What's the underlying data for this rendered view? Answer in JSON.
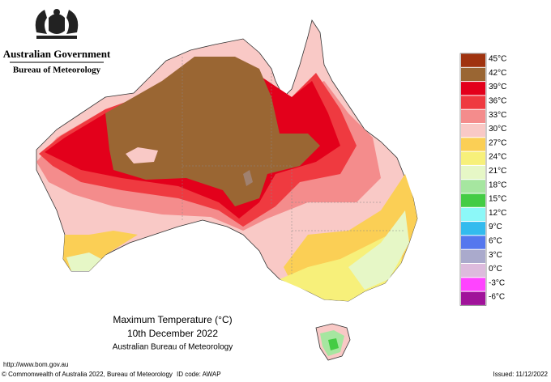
{
  "header": {
    "government": "Australian Government",
    "agency": "Bureau of Meteorology"
  },
  "legend": [
    {
      "label": "45°C",
      "color": "#a0330f"
    },
    {
      "label": "42°C",
      "color": "#9a6633"
    },
    {
      "label": "39°C",
      "color": "#e3001b"
    },
    {
      "label": "36°C",
      "color": "#ef3a40"
    },
    {
      "label": "33°C",
      "color": "#f48c8c"
    },
    {
      "label": "30°C",
      "color": "#f9c9c6"
    },
    {
      "label": "27°C",
      "color": "#fbcf55"
    },
    {
      "label": "24°C",
      "color": "#f7f07a"
    },
    {
      "label": "21°C",
      "color": "#e6f7c6"
    },
    {
      "label": "18°C",
      "color": "#a6e6a0"
    },
    {
      "label": "15°C",
      "color": "#44cc44"
    },
    {
      "label": "12°C",
      "color": "#8cf8f8"
    },
    {
      "label": "9°C",
      "color": "#33bbee"
    },
    {
      "label": "6°C",
      "color": "#5577ee"
    },
    {
      "label": "3°C",
      "color": "#aaaacc"
    },
    {
      "label": "0°C",
      "color": "#ddbbdd"
    },
    {
      "label": "-3°C",
      "color": "#ff44ff"
    },
    {
      "label": "-6°C",
      "color": "#a0139a"
    }
  ],
  "caption": {
    "title": "Maximum Temperature (°C)",
    "date": "10th December 2022",
    "source": "Australian Bureau of Meteorology"
  },
  "footer": {
    "url": "http://www.bom.gov.au",
    "copyright": "© Commonwealth of Australia 2022, Bureau of Meteorology",
    "id_code": "ID code: AWAP",
    "issued": "Issued: 11/12/2022"
  }
}
